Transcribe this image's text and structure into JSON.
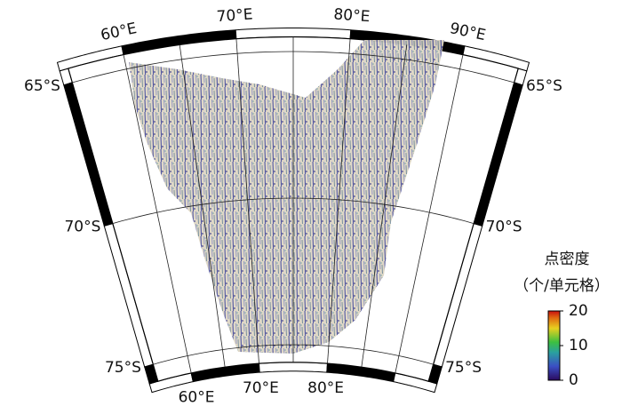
{
  "map": {
    "meridians": [
      {
        "value": 60,
        "label": "60°E"
      },
      {
        "value": 70,
        "label": "70°E"
      },
      {
        "value": 80,
        "label": "80°E"
      },
      {
        "value": 90,
        "label": "90°E"
      }
    ],
    "parallels": [
      {
        "value": 65,
        "label": "65°S"
      },
      {
        "value": 70,
        "label": "70°S"
      },
      {
        "value": 75,
        "label": "75°S"
      }
    ]
  },
  "colorbar": {
    "title": "点密度",
    "subtitle": "（个/单元格）",
    "range": [
      0,
      20
    ],
    "ticks": [
      0,
      10,
      20
    ]
  }
}
